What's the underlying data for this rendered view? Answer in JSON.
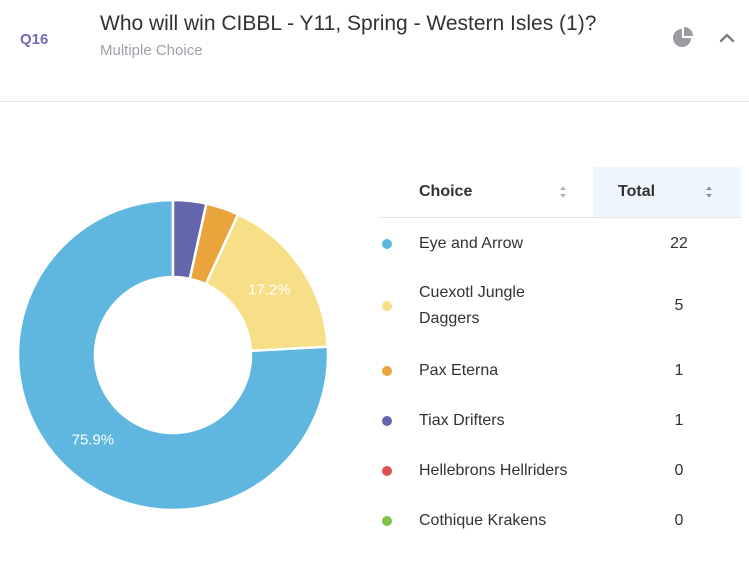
{
  "question": {
    "number": "Q16",
    "title": "Who will win CIBBL - Y11, Spring - Western Isles (1)?",
    "type": "Multiple Choice"
  },
  "icons": {
    "chart_toggle": "pie-chart-icon",
    "collapse": "chevron-up-icon",
    "sort": "sort-arrows-icon"
  },
  "table": {
    "headers": {
      "choice": "Choice",
      "total": "Total"
    },
    "rows": [
      {
        "name": "Eye and Arrow",
        "total": "22",
        "color": "#5fb7e0"
      },
      {
        "name": "Cuexotl Jungle Daggers",
        "total": "5",
        "color": "#f7df87"
      },
      {
        "name": "Pax Eterna",
        "total": "1",
        "color": "#eaa43c"
      },
      {
        "name": "Tiax Drifters",
        "total": "1",
        "color": "#6466ad"
      },
      {
        "name": "Hellebrons Hellriders",
        "total": "0",
        "color": "#e05252"
      },
      {
        "name": "Cothique Krakens",
        "total": "0",
        "color": "#7fc24a"
      }
    ]
  },
  "chart_data": {
    "type": "pie",
    "categories": [
      "Eye and Arrow",
      "Cuexotl Jungle Daggers",
      "Pax Eterna",
      "Tiax Drifters",
      "Hellebrons Hellriders",
      "Cothique Krakens"
    ],
    "values": [
      22,
      5,
      1,
      1,
      0,
      0
    ],
    "labels": [
      "75.9%",
      "17.2%",
      "",
      "",
      "",
      ""
    ],
    "colors": [
      "#5fb7e0",
      "#f7df87",
      "#eaa43c",
      "#6466ad",
      "#e05252",
      "#7fc24a"
    ],
    "donut": true,
    "legend": "table-right"
  }
}
